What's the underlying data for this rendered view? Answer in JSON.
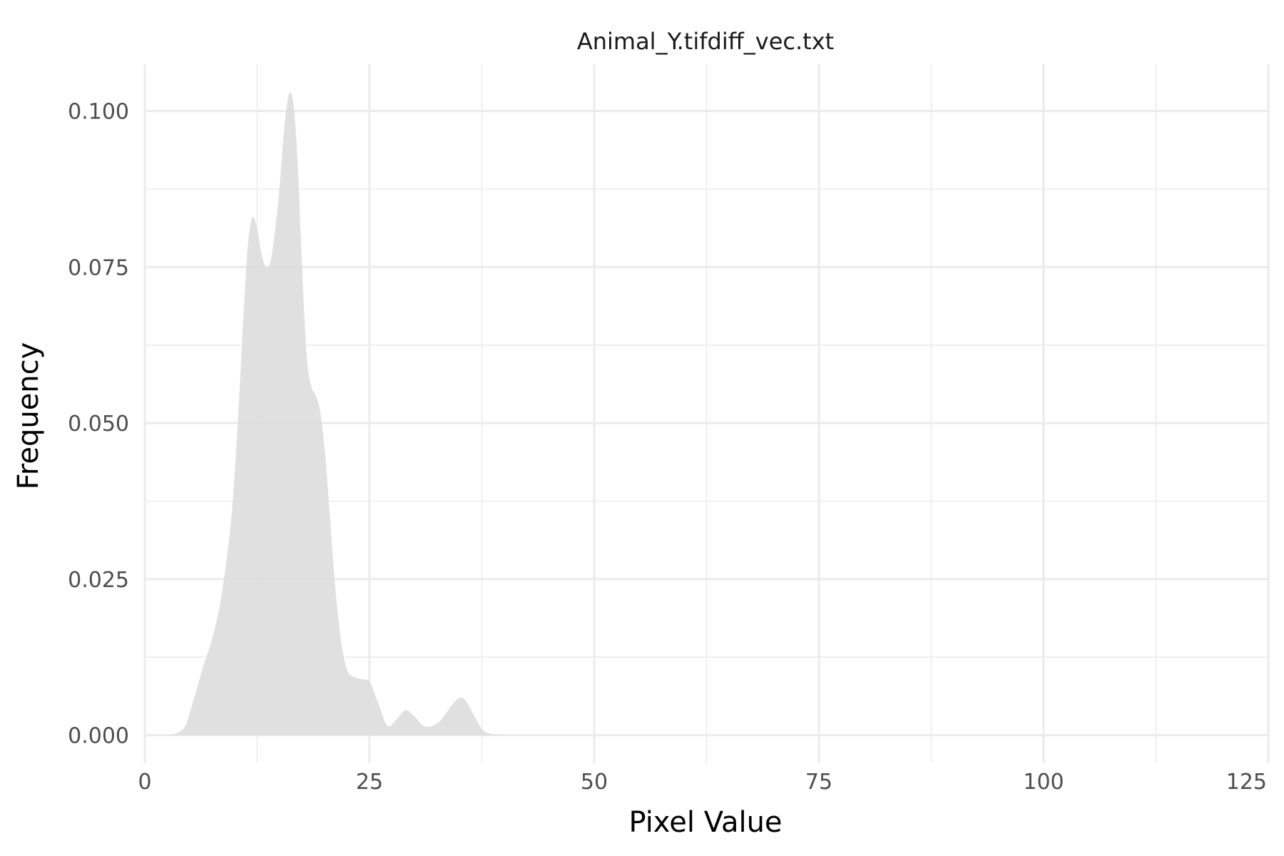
{
  "chart_data": {
    "type": "area",
    "title": "Animal_Y.tifdiff_vec.txt",
    "xlabel": "Pixel Value",
    "ylabel": "Frequency",
    "xlim": [
      0,
      125
    ],
    "ylim": [
      -0.0045,
      0.1075
    ],
    "x_ticks": [
      0,
      25,
      50,
      75,
      100,
      125
    ],
    "x_tick_labels": [
      "0",
      "25",
      "50",
      "75",
      "100",
      "125"
    ],
    "y_ticks": [
      0,
      0.025,
      0.05,
      0.075,
      0.1
    ],
    "y_tick_labels": [
      "0.000",
      "0.025",
      "0.050",
      "0.075",
      "0.100"
    ],
    "grid": true,
    "legend": "none",
    "fill_color": "#dddddd",
    "grid_color": "#ebebeb",
    "series": [
      {
        "x": [
          2.5,
          3.5,
          4.5,
          5.5,
          6.5,
          7.5,
          8.5,
          9.5,
          10.0,
          10.5,
          11.0,
          11.5,
          12.0,
          12.5,
          13.0,
          13.5,
          14.0,
          14.5,
          15.0,
          15.5,
          16.0,
          16.5,
          17.0,
          17.5,
          18.0,
          18.5,
          19.0,
          19.5,
          20.0,
          20.5,
          21.0,
          21.5,
          22.0,
          22.5,
          23.0,
          24.0,
          25.0,
          26.0,
          27.0,
          28.0,
          29.0,
          30.0,
          31.0,
          32.0,
          33.0,
          34.0,
          35.0,
          35.7,
          36.5,
          37.5,
          38.5,
          40.0
        ],
        "y": [
          0.0,
          0.0003,
          0.0015,
          0.006,
          0.011,
          0.0155,
          0.022,
          0.033,
          0.042,
          0.054,
          0.068,
          0.079,
          0.083,
          0.081,
          0.077,
          0.075,
          0.076,
          0.081,
          0.088,
          0.097,
          0.1025,
          0.1015,
          0.092,
          0.075,
          0.061,
          0.056,
          0.0545,
          0.052,
          0.046,
          0.037,
          0.027,
          0.019,
          0.0135,
          0.0105,
          0.0095,
          0.009,
          0.0085,
          0.005,
          0.0015,
          0.0025,
          0.004,
          0.003,
          0.0015,
          0.0015,
          0.0025,
          0.0045,
          0.006,
          0.0055,
          0.0035,
          0.001,
          0.0002,
          0.0
        ]
      }
    ]
  }
}
